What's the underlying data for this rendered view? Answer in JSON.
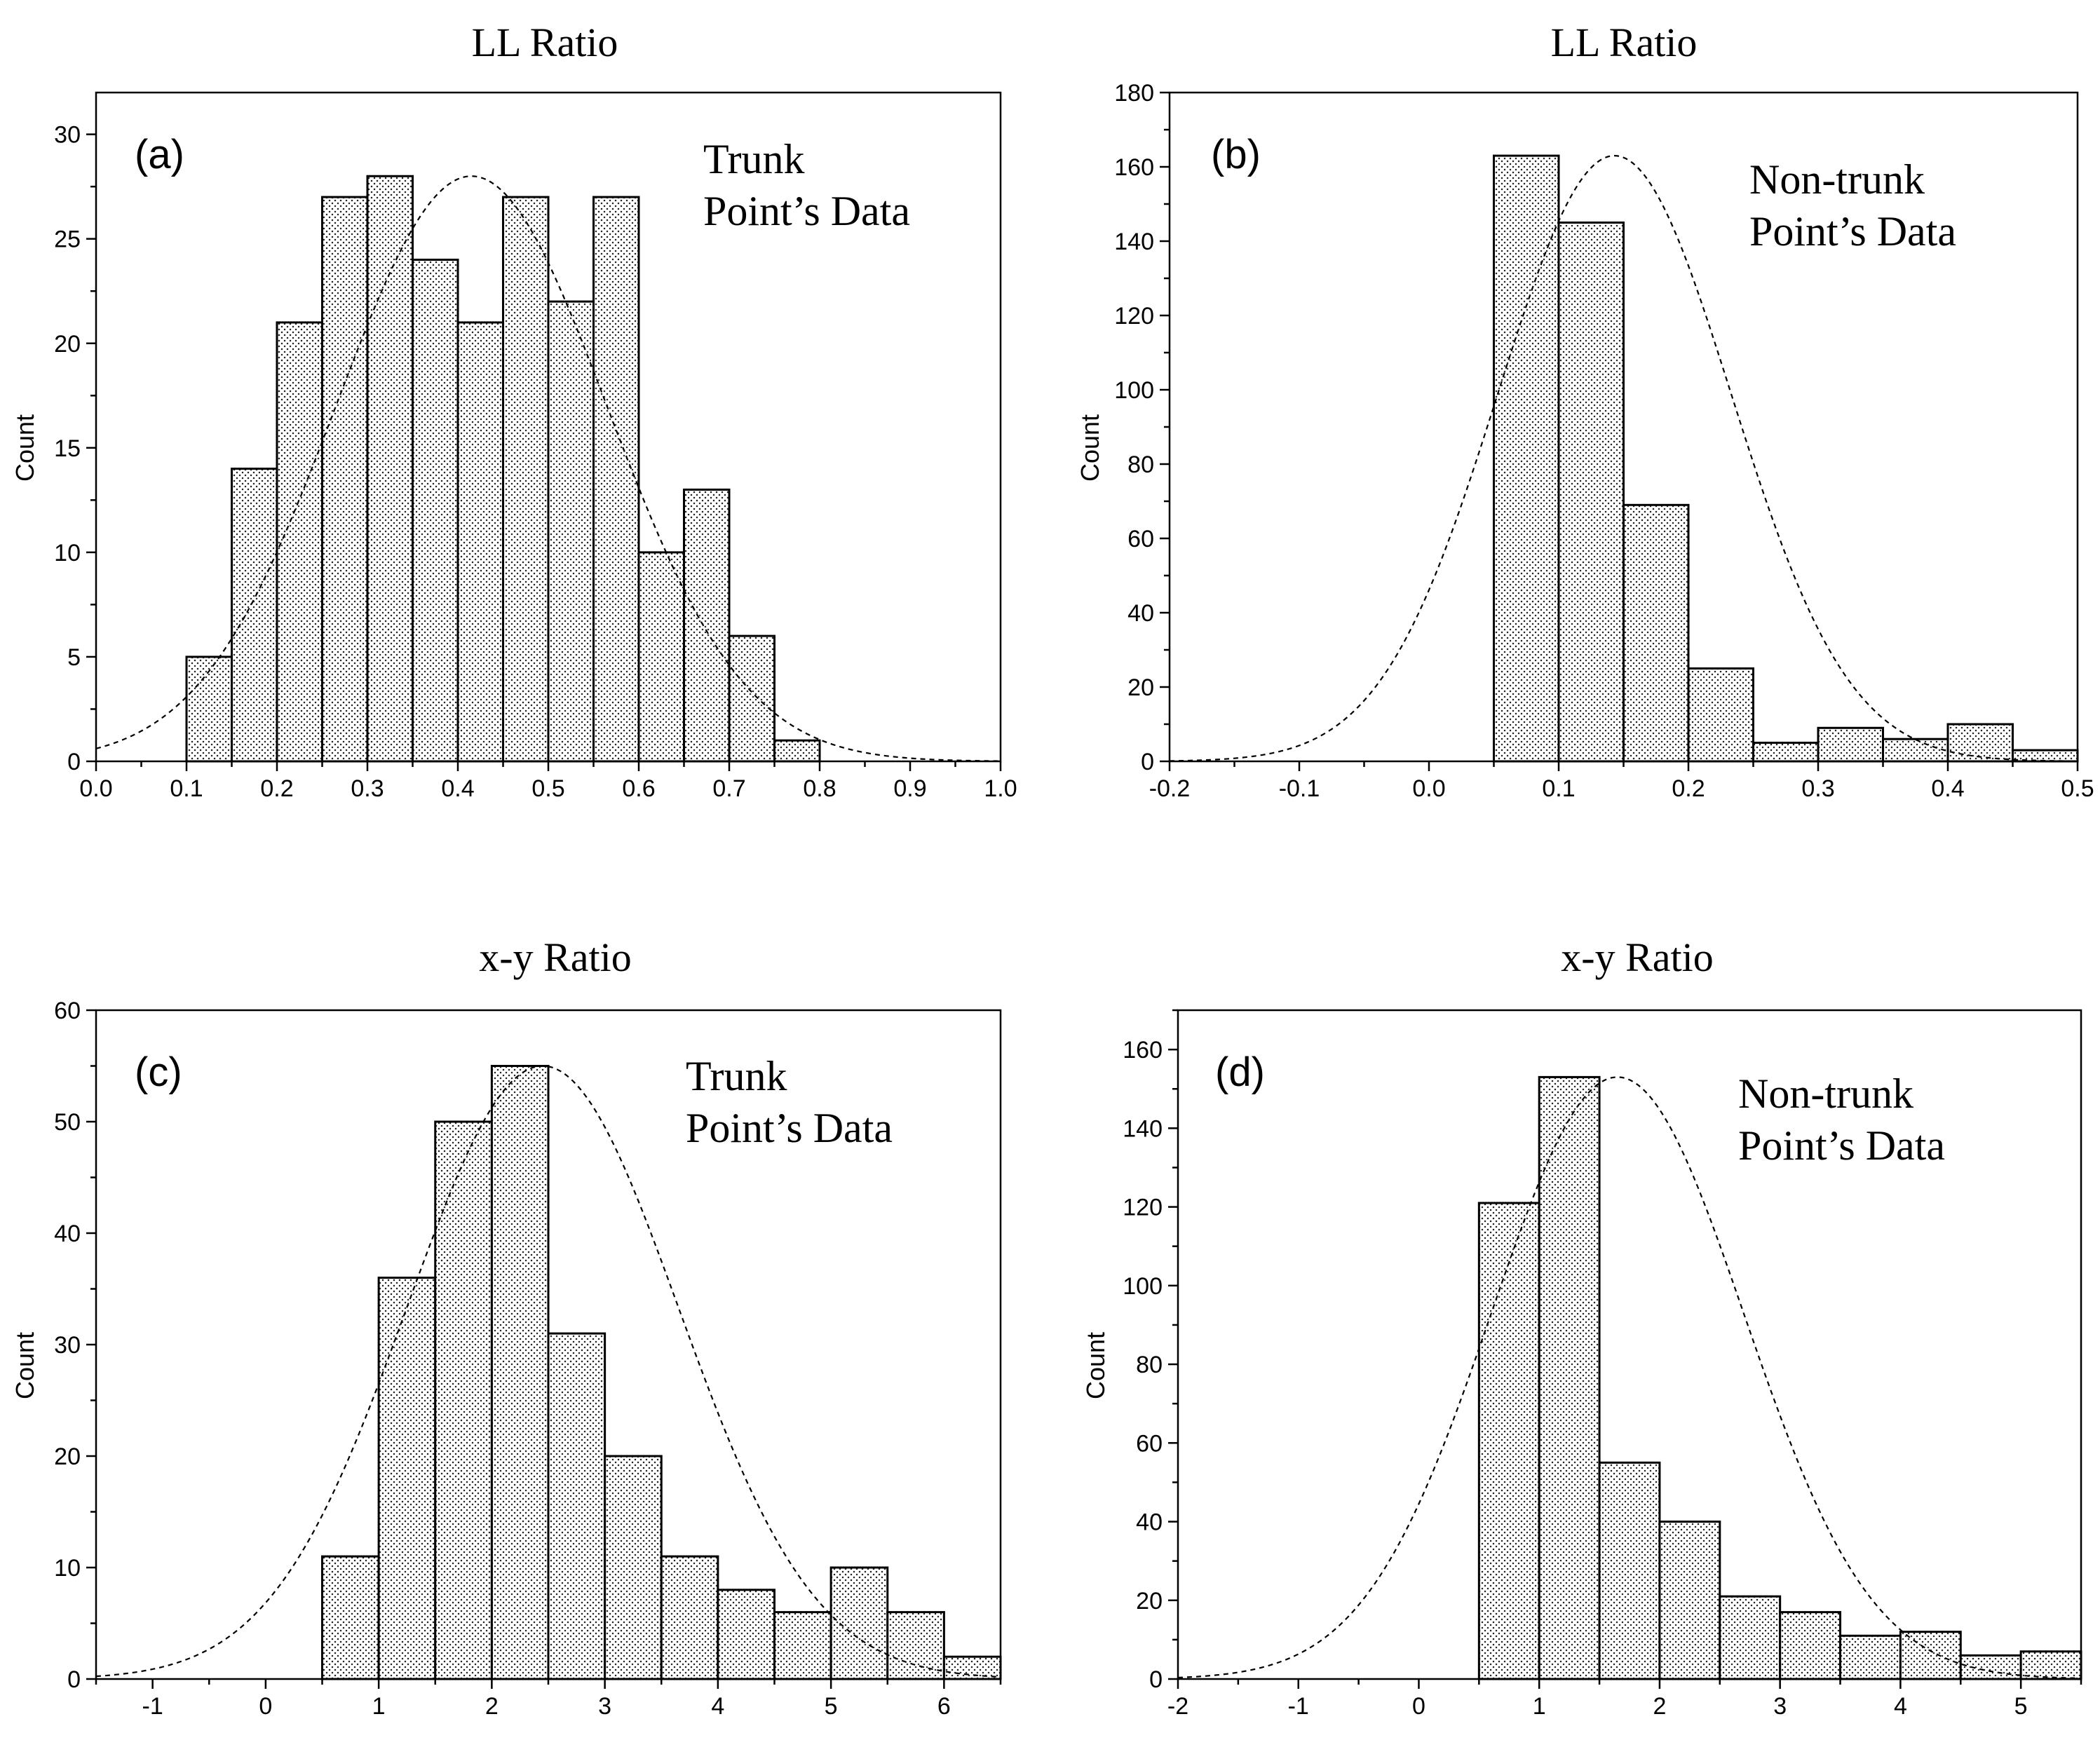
{
  "chart_data": [
    {
      "type": "bar",
      "panel_label": "(a)",
      "title": "LL Ratio",
      "annotation": [
        "Trunk",
        "Point’s Data"
      ],
      "xlabel": "",
      "ylabel": "Count",
      "xlim": [
        0.0,
        1.0
      ],
      "ylim": [
        0,
        32
      ],
      "x_ticks": [
        "0.0",
        "0.1",
        "0.2",
        "0.3",
        "0.4",
        "0.5",
        "0.6",
        "0.7",
        "0.8",
        "0.9",
        "1.0"
      ],
      "x_tick_values": [
        0.0,
        0.1,
        0.2,
        0.3,
        0.4,
        0.5,
        0.6,
        0.7,
        0.8,
        0.9,
        1.0
      ],
      "y_ticks": [
        "0",
        "5",
        "10",
        "15",
        "20",
        "25",
        "30"
      ],
      "y_tick_values": [
        0,
        5,
        10,
        15,
        20,
        25,
        30
      ],
      "bin_width": 0.05,
      "bin_starts": [
        0.1,
        0.15,
        0.2,
        0.25,
        0.3,
        0.35,
        0.4,
        0.45,
        0.5,
        0.55,
        0.6,
        0.65,
        0.7,
        0.75
      ],
      "values": [
        5,
        14,
        21,
        27,
        28,
        24,
        21,
        27,
        22,
        27,
        10,
        13,
        6,
        1
      ],
      "normal_fit": {
        "mean": 0.415,
        "sd": 0.15,
        "peak": 28
      }
    },
    {
      "type": "bar",
      "panel_label": "(b)",
      "title": "LL Ratio",
      "annotation": [
        "Non-trunk",
        "Point’s Data"
      ],
      "xlabel": "",
      "ylabel": "Count",
      "xlim": [
        -0.2,
        0.5
      ],
      "ylim": [
        0,
        180
      ],
      "x_ticks": [
        "-0.2",
        "-0.1",
        "0.0",
        "0.1",
        "0.2",
        "0.3",
        "0.4",
        "0.5"
      ],
      "x_tick_values": [
        -0.2,
        -0.1,
        0.0,
        0.1,
        0.2,
        0.3,
        0.4,
        0.5
      ],
      "y_ticks": [
        "0",
        "20",
        "40",
        "60",
        "80",
        "100",
        "120",
        "140",
        "160",
        "180"
      ],
      "y_tick_values": [
        0,
        20,
        40,
        60,
        80,
        100,
        120,
        140,
        160,
        180
      ],
      "bin_width": 0.05,
      "bin_starts": [
        0.05,
        0.1,
        0.15,
        0.2,
        0.25,
        0.3,
        0.35,
        0.4,
        0.45
      ],
      "values": [
        163,
        145,
        69,
        25,
        5,
        9,
        6,
        10,
        3
      ],
      "normal_fit": {
        "mean": 0.143,
        "sd": 0.09,
        "peak": 163
      }
    },
    {
      "type": "bar",
      "panel_label": "(c)",
      "title": "x-y Ratio",
      "annotation": [
        "Trunk",
        "Point’s Data"
      ],
      "xlabel": "",
      "ylabel": "Count",
      "xlim": [
        -1.5,
        6.5
      ],
      "ylim": [
        0,
        60
      ],
      "x_ticks": [
        "-1",
        "0",
        "1",
        "2",
        "3",
        "4",
        "5",
        "6"
      ],
      "x_tick_values": [
        -1,
        0,
        1,
        2,
        3,
        4,
        5,
        6
      ],
      "y_ticks": [
        "0",
        "10",
        "20",
        "30",
        "40",
        "50",
        "60"
      ],
      "y_tick_values": [
        0,
        10,
        20,
        30,
        40,
        50,
        60
      ],
      "bin_width": 0.5,
      "bin_starts": [
        0.5,
        1.0,
        1.5,
        2.0,
        2.5,
        3.0,
        3.5,
        4.0,
        4.5,
        5.0,
        5.5,
        6.0
      ],
      "values": [
        11,
        36,
        50,
        55,
        31,
        20,
        11,
        8,
        6,
        10,
        6,
        2
      ],
      "normal_fit": {
        "mean": 2.45,
        "sd": 1.2,
        "peak": 55
      }
    },
    {
      "type": "bar",
      "panel_label": "(d)",
      "title": "x-y Ratio",
      "annotation": [
        "Non-trunk",
        "Point’s Data"
      ],
      "xlabel": "",
      "ylabel": "Count",
      "xlim": [
        -2,
        5.5
      ],
      "ylim": [
        0,
        170
      ],
      "x_ticks": [
        "-2",
        "-1",
        "0",
        "1",
        "2",
        "3",
        "4",
        "5"
      ],
      "x_tick_values": [
        -2,
        -1,
        0,
        1,
        2,
        3,
        4,
        5
      ],
      "y_ticks": [
        "0",
        "20",
        "40",
        "60",
        "80",
        "100",
        "120",
        "140",
        "160"
      ],
      "y_tick_values": [
        0,
        20,
        40,
        60,
        80,
        100,
        120,
        140,
        160
      ],
      "bin_width": 0.5,
      "bin_starts": [
        0.5,
        1.0,
        1.5,
        2.0,
        2.5,
        3.0,
        3.5,
        4.0,
        4.5,
        5.0
      ],
      "values": [
        121,
        153,
        55,
        40,
        21,
        17,
        11,
        12,
        6,
        7
      ],
      "normal_fit": {
        "mean": 1.65,
        "sd": 1.05,
        "peak": 153
      }
    }
  ]
}
